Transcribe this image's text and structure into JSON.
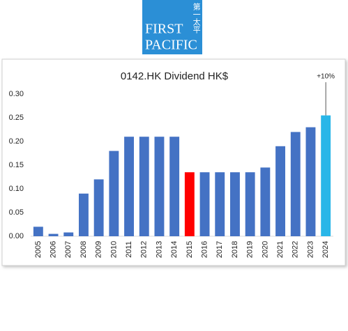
{
  "logo": {
    "line1": "FIRST",
    "line2": "PACIFIC",
    "chinese": "第一太平"
  },
  "chart_data": {
    "type": "bar",
    "title": "0142.HK Dividend HK$",
    "categories": [
      "2005",
      "2006",
      "2007",
      "2008",
      "2009",
      "2010",
      "2011",
      "2012",
      "2013",
      "2014",
      "2015",
      "2016",
      "2017",
      "2018",
      "2019",
      "2020",
      "2021",
      "2022",
      "2023",
      "2024"
    ],
    "values": [
      0.02,
      0.005,
      0.008,
      0.09,
      0.12,
      0.18,
      0.21,
      0.21,
      0.21,
      0.21,
      0.135,
      0.135,
      0.135,
      0.135,
      0.135,
      0.145,
      0.19,
      0.22,
      0.23,
      0.255
    ],
    "colors": [
      "#4472c4",
      "#4472c4",
      "#4472c4",
      "#4472c4",
      "#4472c4",
      "#4472c4",
      "#4472c4",
      "#4472c4",
      "#4472c4",
      "#4472c4",
      "#ff0000",
      "#4472c4",
      "#4472c4",
      "#4472c4",
      "#4472c4",
      "#4472c4",
      "#4472c4",
      "#4472c4",
      "#4472c4",
      "#29b6e8"
    ],
    "ylim": [
      0,
      0.3
    ],
    "yticks": [
      {
        "value": 0,
        "label": "0.00"
      },
      {
        "value": 0.05,
        "label": "0.05"
      },
      {
        "value": 0.1,
        "label": "0.10"
      },
      {
        "value": 0.15,
        "label": "0.15"
      },
      {
        "value": 0.2,
        "label": "0.20"
      },
      {
        "value": 0.25,
        "label": "0.25"
      },
      {
        "value": 0.3,
        "label": "0.30"
      }
    ],
    "annotation": "+10%"
  }
}
